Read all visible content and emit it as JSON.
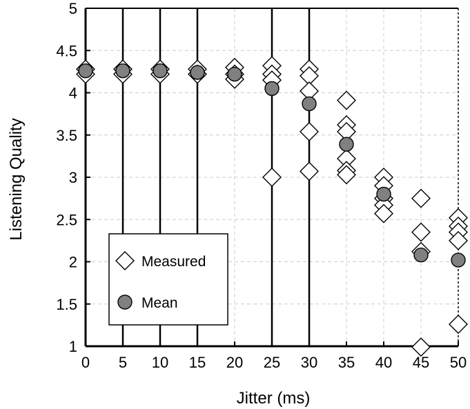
{
  "chart_data": {
    "type": "scatter",
    "xlabel": "Jitter (ms)",
    "ylabel": "Listening Quality",
    "xlim": [
      0,
      50
    ],
    "ylim": [
      1,
      5
    ],
    "xticks": [
      0,
      5,
      10,
      15,
      20,
      25,
      30,
      35,
      40,
      45,
      50
    ],
    "yticks": [
      1,
      1.5,
      2,
      2.5,
      3,
      3.5,
      4,
      4.5,
      5
    ],
    "ytick_labels": [
      "1",
      "1.5",
      "2",
      "2.5",
      "3",
      "3.5",
      "4",
      "4.5",
      "5"
    ],
    "vertical_lines_at": [
      5,
      10,
      15,
      25,
      30
    ],
    "grid": true,
    "legend_position": "bottom-left",
    "series": [
      {
        "name": "Measured",
        "marker": "diamond",
        "color": "#ffffff",
        "edge": "#000000",
        "points": [
          [
            0,
            4.28
          ],
          [
            0,
            4.22
          ],
          [
            5,
            4.28
          ],
          [
            5,
            4.22
          ],
          [
            10,
            4.28
          ],
          [
            10,
            4.22
          ],
          [
            15,
            4.28
          ],
          [
            15,
            4.22
          ],
          [
            20,
            4.3
          ],
          [
            20,
            4.22
          ],
          [
            20,
            4.16
          ],
          [
            25,
            4.32
          ],
          [
            25,
            4.22
          ],
          [
            25,
            4.15
          ],
          [
            25,
            3.0
          ],
          [
            30,
            4.28
          ],
          [
            30,
            4.2
          ],
          [
            30,
            4.02
          ],
          [
            30,
            3.54
          ],
          [
            30,
            3.07
          ],
          [
            35,
            3.91
          ],
          [
            35,
            3.62
          ],
          [
            35,
            3.54
          ],
          [
            35,
            3.22
          ],
          [
            35,
            3.08
          ],
          [
            35,
            3.03
          ],
          [
            40,
            3.0
          ],
          [
            40,
            2.9
          ],
          [
            40,
            2.75
          ],
          [
            40,
            2.67
          ],
          [
            40,
            2.57
          ],
          [
            45,
            2.75
          ],
          [
            45,
            2.35
          ],
          [
            45,
            2.12
          ],
          [
            45,
            0.99
          ],
          [
            50,
            2.52
          ],
          [
            50,
            2.42
          ],
          [
            50,
            2.35
          ],
          [
            50,
            2.25
          ],
          [
            50,
            1.26
          ]
        ]
      },
      {
        "name": "Mean",
        "marker": "circle",
        "color": "#808080",
        "edge": "#000000",
        "points": [
          [
            0,
            4.26
          ],
          [
            5,
            4.26
          ],
          [
            10,
            4.26
          ],
          [
            15,
            4.24
          ],
          [
            20,
            4.22
          ],
          [
            25,
            4.05
          ],
          [
            30,
            3.87
          ],
          [
            35,
            3.39
          ],
          [
            40,
            2.8
          ],
          [
            45,
            2.08
          ],
          [
            50,
            2.02
          ]
        ]
      }
    ]
  }
}
